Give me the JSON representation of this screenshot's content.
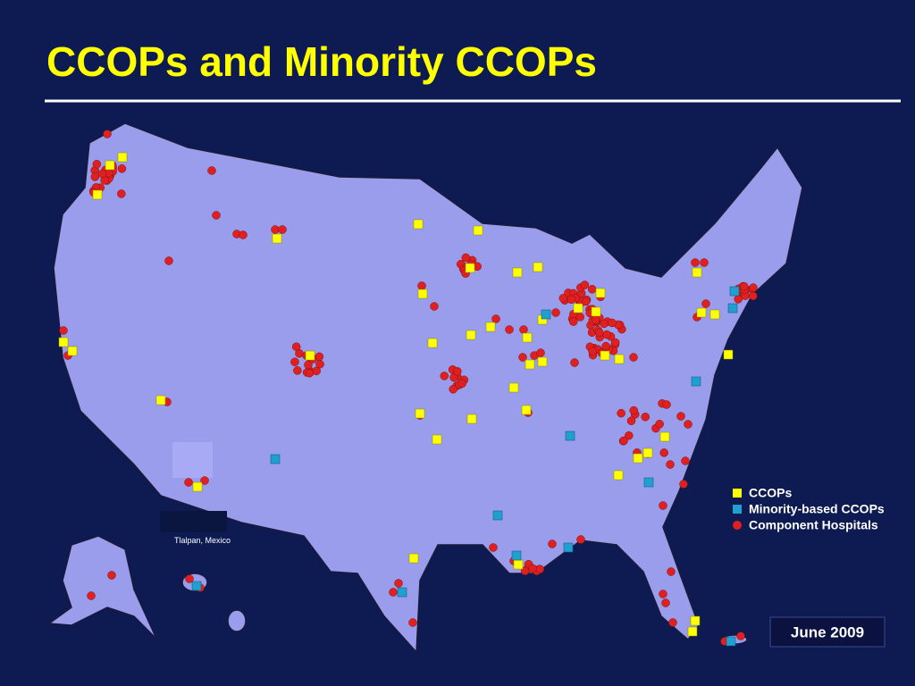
{
  "title": "CCOPs and Minority CCOPs",
  "legend": [
    "CCOPs",
    "Minority-based CCOPs",
    "Component Hospitals"
  ],
  "inset_label": "Tlalpan, Mexico",
  "date": "June 2009"
}
